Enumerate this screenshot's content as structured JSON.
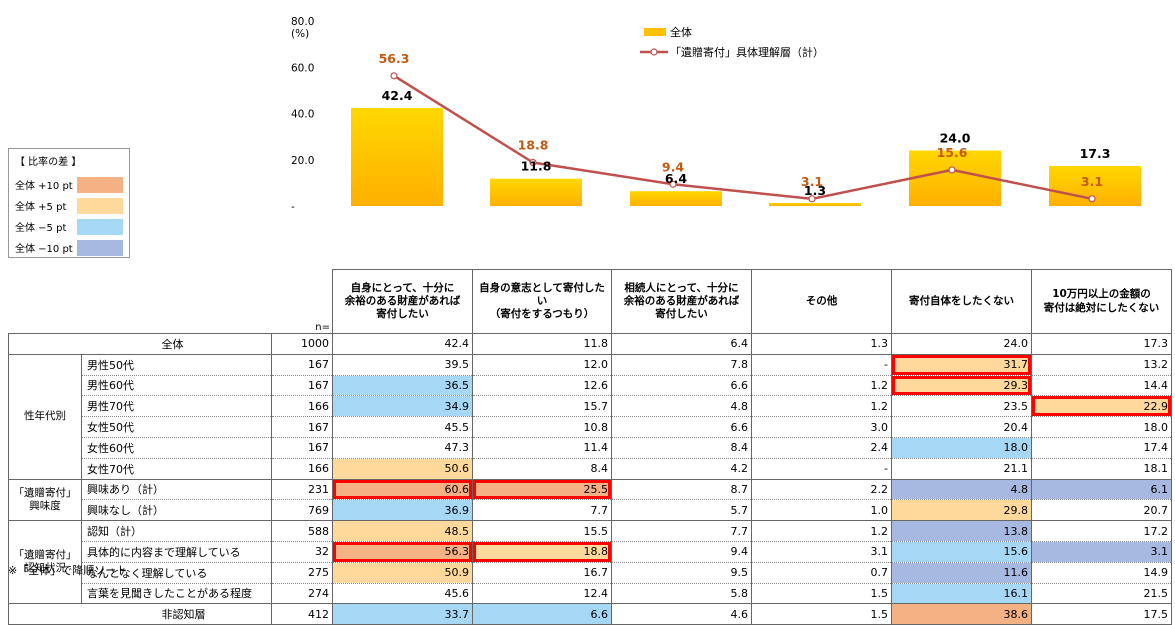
{
  "chart_data": {
    "type": "bar",
    "unit_label": "(%)",
    "ylim": [
      0,
      80
    ],
    "y_ticks": [
      "-",
      "20.0",
      "40.0",
      "60.0",
      "80.0"
    ],
    "categories": [
      "自身にとって、十分に余裕のある財産があれば寄付したい",
      "自身の意志として寄付したい（寄付をするつもり）",
      "相続人にとって、十分に余裕のある財産があれば寄付したい",
      "その他",
      "寄付自体をしたくない",
      "10万円以上の金額の寄付は絶対にしたくない"
    ],
    "category_lines": [
      [
        "自身にとって、十分に",
        "余裕のある財産があれば",
        "寄付したい"
      ],
      [
        "自身の意志として寄付したい",
        "（寄付をするつもり）"
      ],
      [
        "相続人にとって、十分に",
        "余裕のある財産があれば",
        "寄付したい"
      ],
      [
        "その他"
      ],
      [
        "寄付自体をしたくない"
      ],
      [
        "10万円以上の金額の",
        "寄付は絶対にしたくない"
      ]
    ],
    "series": [
      {
        "name": "全体",
        "kind": "bar",
        "color": "#ffc000",
        "values": [
          42.4,
          11.8,
          6.4,
          1.3,
          24.0,
          17.3
        ]
      },
      {
        "name": "「遺贈寄付」具体理解層（計）",
        "kind": "line",
        "color": "#c0504d",
        "label_color": "#c55a11",
        "values": [
          56.3,
          18.8,
          9.4,
          3.1,
          15.6,
          3.1
        ]
      }
    ],
    "legend_position": "top"
  },
  "diff_legend": {
    "title": "【 比率の差 】",
    "items": [
      {
        "label": "全体 +10 pt",
        "color": "#f4b183"
      },
      {
        "label": "全体 +5 pt",
        "color": "#ffd99b"
      },
      {
        "label": "全体 −5 pt",
        "color": "#a6d7f5"
      },
      {
        "label": "全体 −10 pt",
        "color": "#a7b9e0"
      }
    ]
  },
  "table": {
    "n_header": "n=",
    "rows": [
      {
        "group": "",
        "label": "全体",
        "n": "1000",
        "values": [
          "42.4",
          "11.8",
          "6.4",
          "1.3",
          "24.0",
          "17.3"
        ],
        "colors": [
          "",
          "",
          "",
          "",
          "",
          ""
        ],
        "hl": []
      },
      {
        "group": "性年代別",
        "label": "男性50代",
        "n": "167",
        "values": [
          "39.5",
          "12.0",
          "7.8",
          "-",
          "31.7",
          "13.2"
        ],
        "colors": [
          "",
          "",
          "",
          "",
          "p5",
          ""
        ],
        "hl": [
          4
        ]
      },
      {
        "group": "性年代別",
        "label": "男性60代",
        "n": "167",
        "values": [
          "36.5",
          "12.6",
          "6.6",
          "1.2",
          "29.3",
          "14.4"
        ],
        "colors": [
          "m5",
          "",
          "",
          "",
          "p5",
          ""
        ],
        "hl": [
          4
        ]
      },
      {
        "group": "性年代別",
        "label": "男性70代",
        "n": "166",
        "values": [
          "34.9",
          "15.7",
          "4.8",
          "1.2",
          "23.5",
          "22.9"
        ],
        "colors": [
          "m5",
          "",
          "",
          "",
          "",
          "p5"
        ],
        "hl": [
          5
        ]
      },
      {
        "group": "性年代別",
        "label": "女性50代",
        "n": "167",
        "values": [
          "45.5",
          "10.8",
          "6.6",
          "3.0",
          "20.4",
          "18.0"
        ],
        "colors": [
          "",
          "",
          "",
          "",
          "",
          ""
        ],
        "hl": []
      },
      {
        "group": "性年代別",
        "label": "女性60代",
        "n": "167",
        "values": [
          "47.3",
          "11.4",
          "8.4",
          "2.4",
          "18.0",
          "17.4"
        ],
        "colors": [
          "",
          "",
          "",
          "",
          "m5",
          ""
        ],
        "hl": []
      },
      {
        "group": "性年代別",
        "label": "女性70代",
        "n": "166",
        "values": [
          "50.6",
          "8.4",
          "4.2",
          "-",
          "21.1",
          "18.1"
        ],
        "colors": [
          "p5",
          "",
          "",
          "",
          "",
          ""
        ],
        "hl": []
      },
      {
        "group": "「遺贈寄付」興味度",
        "label": "興味あり（計）",
        "n": "231",
        "values": [
          "60.6",
          "25.5",
          "8.7",
          "2.2",
          "4.8",
          "6.1"
        ],
        "colors": [
          "p10",
          "p10",
          "",
          "",
          "m10",
          "m10"
        ],
        "hl": [
          0,
          1
        ]
      },
      {
        "group": "「遺贈寄付」興味度",
        "label": "興味なし（計）",
        "n": "769",
        "values": [
          "36.9",
          "7.7",
          "5.7",
          "1.0",
          "29.8",
          "20.7"
        ],
        "colors": [
          "m5",
          "",
          "",
          "",
          "p5",
          ""
        ],
        "hl": []
      },
      {
        "group": "「遺贈寄付」認知状況",
        "label": "認知（計）",
        "n": "588",
        "values": [
          "48.5",
          "15.5",
          "7.7",
          "1.2",
          "13.8",
          "17.2"
        ],
        "colors": [
          "p5",
          "",
          "",
          "",
          "m10",
          ""
        ],
        "hl": []
      },
      {
        "group": "「遺贈寄付」認知状況",
        "label": "具体的に内容まで理解している",
        "n": "32",
        "values": [
          "56.3",
          "18.8",
          "9.4",
          "3.1",
          "15.6",
          "3.1"
        ],
        "colors": [
          "p10",
          "p5",
          "",
          "",
          "m5",
          "m10"
        ],
        "hl": [
          0,
          1
        ]
      },
      {
        "group": "「遺贈寄付」認知状況",
        "label": "なんとなく理解している",
        "n": "275",
        "values": [
          "50.9",
          "16.7",
          "9.5",
          "0.7",
          "11.6",
          "14.9"
        ],
        "colors": [
          "p5",
          "",
          "",
          "",
          "m10",
          ""
        ],
        "hl": []
      },
      {
        "group": "「遺贈寄付」認知状況",
        "label": "言葉を見聞きしたことがある程度",
        "n": "274",
        "values": [
          "45.6",
          "12.4",
          "5.8",
          "1.5",
          "16.1",
          "21.5"
        ],
        "colors": [
          "",
          "",
          "",
          "",
          "m5",
          ""
        ],
        "hl": []
      },
      {
        "group": "",
        "label": "非認知層",
        "n": "412",
        "values": [
          "33.7",
          "6.6",
          "4.6",
          "1.5",
          "38.6",
          "17.5"
        ],
        "colors": [
          "m5",
          "m5",
          "",
          "",
          "p10",
          ""
        ],
        "hl": []
      }
    ],
    "group_labels": {
      "性年代別": [
        "性年代別"
      ],
      "「遺贈寄付」興味度": [
        "「遺贈寄付」",
        "興味度"
      ],
      "「遺贈寄付」認知状況": [
        "「遺贈寄付」",
        "認知状況"
      ]
    }
  },
  "footnote": "※「全体」で降順ソート"
}
